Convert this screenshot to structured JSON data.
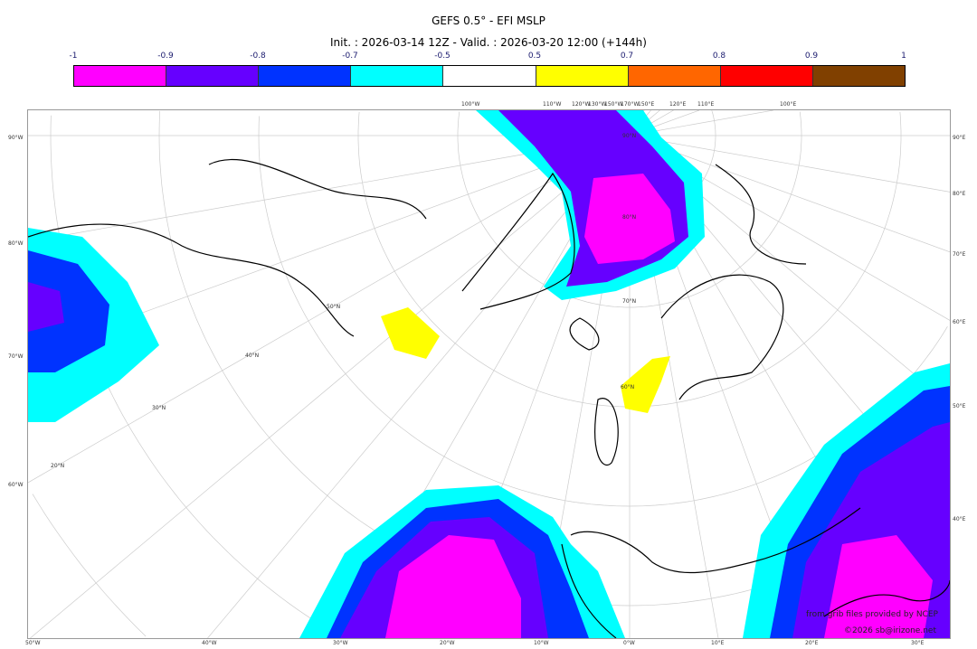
{
  "title": "GEFS 0.5° - EFI MSLP",
  "subtitle": "Init. : 2026-03-14 12Z - Valid. : 2026-03-20 12:00 (+144h)",
  "colorbar": {
    "ticks": [
      "-1",
      "-0.9",
      "-0.8",
      "-0.7",
      "-0.5",
      "0.5",
      "0.7",
      "0.8",
      "0.9",
      "1"
    ],
    "colors": [
      "#ff00ff",
      "#6600ff",
      "#0033ff",
      "#00ffff",
      "#ffffff",
      "#ffff00",
      "#ff6600",
      "#ff0000",
      "#804000"
    ]
  },
  "map": {
    "top_labels": [
      "100°W",
      "110°W",
      "120°W",
      "130°W",
      "150°W",
      "170°W",
      "150°E",
      "120°E",
      "110°E",
      "100°E"
    ],
    "left_labels": [
      "90°W",
      "80°W",
      "70°W",
      "60°W"
    ],
    "right_labels": [
      "90°E",
      "80°E",
      "70°E",
      "60°E",
      "50°E",
      "40°E"
    ],
    "bottom_labels": [
      "50°W",
      "40°W",
      "30°W",
      "20°W",
      "10°W",
      "0°W",
      "10°E",
      "20°E",
      "30°E"
    ],
    "lat_labels": [
      "90°N",
      "80°N",
      "70°N",
      "60°N",
      "50°N",
      "40°N",
      "30°N",
      "20°N"
    ]
  },
  "credits": {
    "line1": "from grib files provided by NCEP",
    "line2": "©2026 sb@irizone.net"
  }
}
